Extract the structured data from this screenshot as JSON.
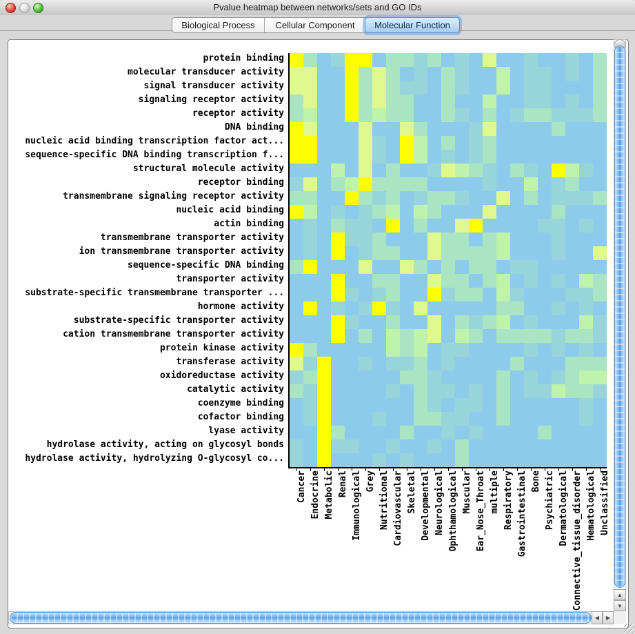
{
  "window": {
    "title": "Pvalue heatmap between networks/sets and GO IDs",
    "traffic_lights": [
      "close-button",
      "minimize-button-disabled",
      "zoom-button"
    ]
  },
  "tabs": [
    {
      "label": "Biological Process",
      "selected": false
    },
    {
      "label": "Cellular Component",
      "selected": false
    },
    {
      "label": "Molecular Function",
      "selected": true
    }
  ],
  "accent_colors": {
    "selected_tab_fill": "#a6ccf1",
    "selected_tab_ring": "#4f8fd6",
    "scrollbar_aqua": "#4a95e2"
  },
  "scrollbar": {
    "up_arrow": "▲",
    "down_arrow": "▼",
    "left_arrow": "◀",
    "right_arrow": "▶"
  },
  "chart_data": {
    "type": "heatmap",
    "title": "Pvalue heatmap between networks/sets and GO IDs",
    "xlabel": "",
    "ylabel": "",
    "legend": "none",
    "grid": false,
    "color_scale_note": "levels 0-5 map low-to-high from light blue to bright yellow",
    "palette": [
      "#8CCBEB",
      "#97D5DA",
      "#A9E4C3",
      "#BFF3AC",
      "#DFF98C",
      "#FFFF00"
    ],
    "rows": [
      "protein binding",
      "molecular transducer activity",
      "signal transducer activity",
      "signaling receptor activity",
      "receptor activity",
      "DNA binding",
      "nucleic acid binding transcription factor act...",
      "sequence-specific DNA binding transcription f...",
      "structural molecule activity",
      "receptor binding",
      "transmembrane signaling receptor activity",
      "nucleic acid binding",
      "actin binding",
      "transmembrane transporter activity",
      "ion transmembrane transporter activity",
      "sequence-specific DNA binding",
      "transporter activity",
      "substrate-specific transmembrane transporter ...",
      "hormone activity",
      "substrate-specific transporter activity",
      "cation transmembrane transporter activity",
      "protein kinase activity",
      "transferase activity",
      "oxidoreductase activity",
      "catalytic activity",
      "coenzyme binding",
      "cofactor binding",
      "lyase activity",
      "hydrolase activity, acting on glycosyl bonds",
      "hydrolase activity, hydrolyzing O-glycosyl co..."
    ],
    "columns": [
      "Cancer",
      "Endocrine",
      "Metabolic",
      "Renal",
      "Immunological",
      "Grey",
      "Nutritional",
      "Cardiovascular",
      "Skeletal",
      "Developmental",
      "Neurological",
      "Ophthamological",
      "Muscular",
      "Ear_Nose_Throat",
      "multiple",
      "Respiratory",
      "Gastrointestinal",
      "Bone",
      "Psychiatric",
      "Dermatological",
      "Connective_tissue_disorder",
      "Hematological",
      "Unclassified"
    ],
    "values": [
      [
        5,
        2,
        0,
        1,
        5,
        5,
        0,
        2,
        2,
        1,
        2,
        0,
        1,
        0,
        4,
        0,
        0,
        1,
        0,
        0,
        1,
        0,
        2
      ],
      [
        4,
        4,
        0,
        0,
        5,
        2,
        4,
        2,
        0,
        1,
        0,
        2,
        1,
        0,
        0,
        3,
        0,
        1,
        1,
        0,
        1,
        0,
        2
      ],
      [
        4,
        4,
        0,
        0,
        5,
        2,
        4,
        2,
        1,
        1,
        0,
        2,
        1,
        0,
        0,
        3,
        0,
        1,
        1,
        0,
        0,
        0,
        2
      ],
      [
        2,
        4,
        0,
        0,
        5,
        2,
        4,
        2,
        2,
        0,
        0,
        2,
        0,
        0,
        3,
        0,
        0,
        1,
        1,
        0,
        1,
        0,
        2
      ],
      [
        2,
        3,
        0,
        0,
        5,
        2,
        3,
        2,
        2,
        0,
        0,
        2,
        1,
        0,
        2,
        0,
        1,
        2,
        2,
        1,
        1,
        1,
        2
      ],
      [
        5,
        4,
        0,
        0,
        0,
        4,
        0,
        0,
        4,
        2,
        0,
        0,
        0,
        1,
        4,
        0,
        0,
        0,
        0,
        2,
        0,
        0,
        0
      ],
      [
        5,
        5,
        0,
        0,
        0,
        4,
        1,
        0,
        5,
        3,
        0,
        2,
        0,
        1,
        2,
        0,
        0,
        0,
        0,
        0,
        0,
        0,
        0
      ],
      [
        5,
        5,
        0,
        0,
        0,
        4,
        1,
        0,
        5,
        3,
        0,
        1,
        0,
        1,
        2,
        0,
        0,
        0,
        0,
        0,
        0,
        0,
        0
      ],
      [
        0,
        0,
        0,
        3,
        0,
        4,
        0,
        2,
        0,
        0,
        1,
        4,
        3,
        2,
        1,
        0,
        2,
        1,
        0,
        5,
        3,
        1,
        0
      ],
      [
        1,
        4,
        0,
        2,
        3,
        5,
        2,
        2,
        2,
        2,
        0,
        0,
        0,
        0,
        1,
        0,
        0,
        3,
        0,
        1,
        2,
        0,
        0
      ],
      [
        2,
        2,
        0,
        0,
        5,
        2,
        1,
        2,
        0,
        1,
        2,
        2,
        1,
        0,
        0,
        4,
        0,
        2,
        0,
        1,
        1,
        1,
        2
      ],
      [
        5,
        3,
        0,
        1,
        0,
        1,
        2,
        3,
        0,
        3,
        2,
        0,
        0,
        0,
        4,
        0,
        0,
        0,
        0,
        2,
        0,
        0,
        0
      ],
      [
        0,
        1,
        0,
        2,
        1,
        1,
        0,
        5,
        0,
        2,
        0,
        0,
        4,
        5,
        0,
        0,
        0,
        0,
        1,
        1,
        0,
        1,
        0
      ],
      [
        0,
        1,
        0,
        5,
        1,
        1,
        2,
        0,
        0,
        0,
        4,
        2,
        2,
        0,
        2,
        3,
        0,
        0,
        0,
        1,
        0,
        0,
        0
      ],
      [
        0,
        1,
        0,
        5,
        0,
        1,
        2,
        2,
        0,
        0,
        4,
        2,
        2,
        2,
        2,
        3,
        0,
        0,
        0,
        1,
        0,
        0,
        4
      ],
      [
        2,
        5,
        0,
        0,
        0,
        4,
        0,
        0,
        4,
        2,
        0,
        2,
        0,
        2,
        2,
        0,
        1,
        1,
        0,
        0,
        0,
        0,
        0
      ],
      [
        0,
        0,
        0,
        5,
        0,
        0,
        2,
        2,
        0,
        0,
        4,
        2,
        2,
        0,
        2,
        3,
        0,
        1,
        0,
        1,
        0,
        3,
        2
      ],
      [
        0,
        0,
        0,
        5,
        1,
        0,
        1,
        2,
        0,
        0,
        5,
        1,
        2,
        2,
        0,
        3,
        1,
        0,
        0,
        0,
        1,
        1,
        2
      ],
      [
        0,
        5,
        0,
        1,
        0,
        1,
        5,
        1,
        0,
        4,
        0,
        0,
        0,
        0,
        0,
        2,
        2,
        0,
        0,
        1,
        0,
        1,
        0
      ],
      [
        0,
        0,
        0,
        5,
        1,
        0,
        0,
        2,
        0,
        0,
        4,
        0,
        2,
        1,
        2,
        3,
        0,
        1,
        0,
        0,
        0,
        3,
        1
      ],
      [
        0,
        0,
        0,
        5,
        0,
        2,
        0,
        3,
        2,
        3,
        4,
        0,
        3,
        2,
        0,
        2,
        2,
        2,
        2,
        1,
        2,
        2,
        1
      ],
      [
        5,
        2,
        0,
        0,
        0,
        0,
        0,
        3,
        2,
        3,
        0,
        1,
        1,
        0,
        0,
        0,
        0,
        1,
        0,
        1,
        0,
        1,
        0
      ],
      [
        4,
        1,
        5,
        0,
        0,
        1,
        0,
        1,
        1,
        2,
        0,
        1,
        0,
        0,
        0,
        0,
        2,
        0,
        0,
        0,
        2,
        2,
        2
      ],
      [
        1,
        2,
        5,
        0,
        0,
        0,
        0,
        0,
        2,
        2,
        1,
        0,
        0,
        0,
        0,
        2,
        0,
        1,
        0,
        1,
        2,
        3,
        3
      ],
      [
        2,
        1,
        5,
        0,
        0,
        0,
        0,
        1,
        0,
        2,
        1,
        1,
        0,
        1,
        0,
        2,
        0,
        1,
        1,
        3,
        2,
        2,
        1
      ],
      [
        0,
        1,
        5,
        0,
        0,
        0,
        0,
        0,
        0,
        2,
        1,
        0,
        1,
        1,
        0,
        2,
        0,
        0,
        0,
        0,
        0,
        1,
        0
      ],
      [
        0,
        1,
        5,
        0,
        0,
        0,
        1,
        0,
        0,
        2,
        2,
        1,
        1,
        0,
        0,
        2,
        0,
        0,
        0,
        0,
        0,
        1,
        0
      ],
      [
        0,
        0,
        5,
        2,
        0,
        0,
        0,
        0,
        2,
        0,
        0,
        1,
        0,
        1,
        0,
        0,
        0,
        0,
        2,
        0,
        0,
        0,
        0
      ],
      [
        1,
        0,
        5,
        1,
        1,
        0,
        0,
        1,
        0,
        0,
        1,
        0,
        2,
        0,
        0,
        0,
        0,
        0,
        0,
        0,
        0,
        0,
        0
      ],
      [
        1,
        0,
        5,
        0,
        0,
        0,
        1,
        0,
        1,
        0,
        0,
        0,
        2,
        0,
        0,
        0,
        0,
        0,
        0,
        0,
        0,
        0,
        0
      ]
    ]
  }
}
